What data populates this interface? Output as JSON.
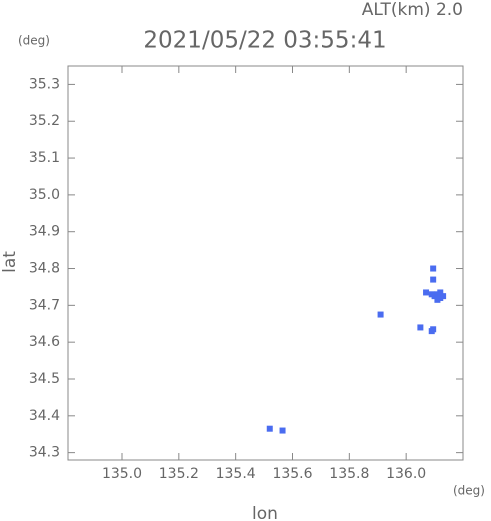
{
  "chart_data": {
    "type": "scatter",
    "title": "2021/05/22 03:55:41",
    "subtitle": "ALT(km) 2.0",
    "x_label": "lon",
    "y_label": "lat",
    "x_unit": "(deg)",
    "y_unit": "(deg)",
    "color": "#4a6cf0",
    "x": [
      136.07,
      136.09,
      136.1,
      136.11,
      136.12,
      136.13,
      136.11,
      136.12,
      136.09,
      136.095,
      136.05,
      135.91,
      135.565,
      135.52,
      136.095,
      136.095
    ],
    "y": [
      34.735,
      34.73,
      34.725,
      34.73,
      34.72,
      34.725,
      34.715,
      34.735,
      34.63,
      34.635,
      34.64,
      34.675,
      34.36,
      34.365,
      34.8,
      34.77
    ],
    "xlim": [
      134.81,
      136.2
    ],
    "ylim": [
      34.28,
      35.35
    ],
    "xticks": [
      {
        "value": 135.0,
        "label": "135.0"
      },
      135.2,
      135.4,
      135.6,
      135.8,
      {
        "value": 136.0,
        "label": "136.0"
      }
    ],
    "yticks": [
      35.3,
      35.2,
      35.1,
      {
        "value": 35.0,
        "label": "35.0"
      },
      34.9,
      34.8,
      34.7,
      34.6,
      34.5,
      34.4,
      34.3
    ]
  }
}
